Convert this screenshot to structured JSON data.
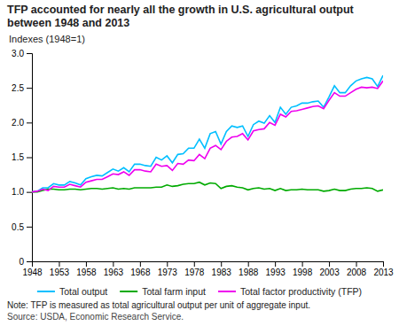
{
  "chart_data": {
    "type": "line",
    "title": "TFP accounted for nearly all the growth in U.S. agricultural output between 1948 and 2013",
    "y_label": "Indexes (1948=1)",
    "note": "Note: TFP is measured as total agricultural output per unit of aggregate input.",
    "source": "Source: USDA, Economic Research Service.",
    "x": [
      1948,
      1949,
      1950,
      1951,
      1952,
      1953,
      1954,
      1955,
      1956,
      1957,
      1958,
      1959,
      1960,
      1961,
      1962,
      1963,
      1964,
      1965,
      1966,
      1967,
      1968,
      1969,
      1970,
      1971,
      1972,
      1973,
      1974,
      1975,
      1976,
      1977,
      1978,
      1979,
      1980,
      1981,
      1982,
      1983,
      1984,
      1985,
      1986,
      1987,
      1988,
      1989,
      1990,
      1991,
      1992,
      1993,
      1994,
      1995,
      1996,
      1997,
      1998,
      1999,
      2000,
      2001,
      2002,
      2003,
      2004,
      2005,
      2006,
      2007,
      2008,
      2009,
      2010,
      2011,
      2012,
      2013
    ],
    "series": [
      {
        "name": "Total output",
        "color": "#00bfff",
        "values": [
          1.0,
          1.01,
          1.06,
          1.06,
          1.12,
          1.1,
          1.1,
          1.15,
          1.13,
          1.1,
          1.19,
          1.22,
          1.24,
          1.23,
          1.28,
          1.33,
          1.3,
          1.35,
          1.29,
          1.4,
          1.4,
          1.38,
          1.37,
          1.5,
          1.46,
          1.52,
          1.42,
          1.54,
          1.55,
          1.63,
          1.63,
          1.76,
          1.63,
          1.84,
          1.87,
          1.69,
          1.87,
          1.95,
          1.93,
          1.95,
          1.8,
          1.97,
          2.02,
          1.99,
          2.1,
          2.0,
          2.22,
          2.12,
          2.22,
          2.24,
          2.28,
          2.28,
          2.3,
          2.31,
          2.22,
          2.37,
          2.53,
          2.43,
          2.43,
          2.53,
          2.6,
          2.63,
          2.65,
          2.63,
          2.52,
          2.68
        ]
      },
      {
        "name": "Total farm input",
        "color": "#00aa00",
        "values": [
          1.0,
          1.0,
          1.02,
          1.04,
          1.04,
          1.03,
          1.03,
          1.04,
          1.04,
          1.03,
          1.04,
          1.05,
          1.05,
          1.04,
          1.05,
          1.06,
          1.04,
          1.05,
          1.04,
          1.06,
          1.06,
          1.06,
          1.06,
          1.07,
          1.07,
          1.1,
          1.08,
          1.09,
          1.11,
          1.12,
          1.12,
          1.14,
          1.1,
          1.13,
          1.12,
          1.05,
          1.08,
          1.09,
          1.07,
          1.06,
          1.03,
          1.05,
          1.06,
          1.04,
          1.05,
          1.02,
          1.05,
          1.02,
          1.03,
          1.03,
          1.04,
          1.03,
          1.03,
          1.03,
          1.01,
          1.02,
          1.04,
          1.02,
          1.02,
          1.04,
          1.05,
          1.05,
          1.06,
          1.05,
          1.01,
          1.03
        ]
      },
      {
        "name": "Total factor productivity (TFP)",
        "color": "#ee00ee",
        "values": [
          1.0,
          1.01,
          1.04,
          1.02,
          1.08,
          1.07,
          1.07,
          1.11,
          1.09,
          1.07,
          1.14,
          1.16,
          1.18,
          1.18,
          1.22,
          1.26,
          1.25,
          1.29,
          1.24,
          1.32,
          1.32,
          1.3,
          1.29,
          1.4,
          1.37,
          1.38,
          1.31,
          1.41,
          1.4,
          1.46,
          1.45,
          1.54,
          1.48,
          1.63,
          1.67,
          1.61,
          1.73,
          1.79,
          1.8,
          1.84,
          1.75,
          1.88,
          1.9,
          1.91,
          2.0,
          1.96,
          2.12,
          2.08,
          2.16,
          2.17,
          2.19,
          2.21,
          2.23,
          2.24,
          2.2,
          2.32,
          2.43,
          2.38,
          2.38,
          2.43,
          2.48,
          2.51,
          2.5,
          2.51,
          2.49,
          2.6
        ]
      }
    ],
    "xlim": [
      1948,
      2013
    ],
    "xticks": [
      1948,
      1953,
      1958,
      1963,
      1968,
      1973,
      1978,
      1983,
      1988,
      1993,
      1998,
      2003,
      2008,
      2013
    ],
    "ylim": [
      0,
      3.0
    ],
    "yticks": [
      0,
      0.5,
      {
        "value": 1.0,
        "label": "1.0"
      },
      1.5,
      {
        "value": 2.0,
        "label": "2.0"
      },
      2.5,
      {
        "value": 3.0,
        "label": "3.0"
      }
    ],
    "grid": false,
    "legend": "bottom"
  }
}
